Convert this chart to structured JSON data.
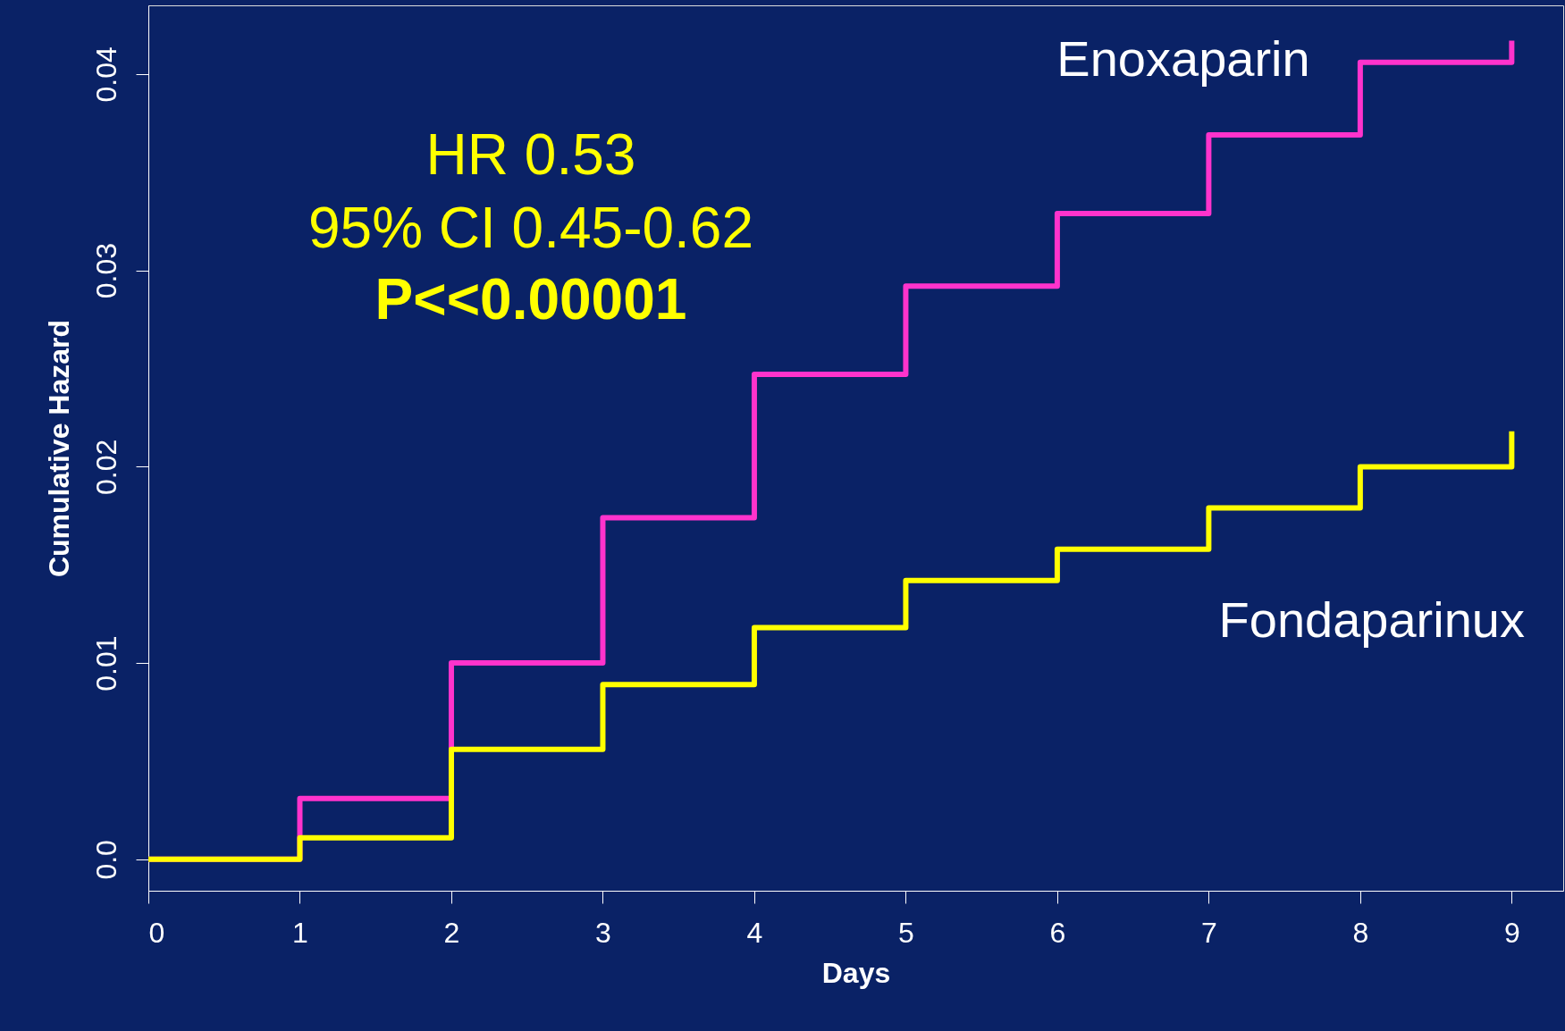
{
  "chart_data": {
    "type": "step",
    "xlabel": "Days",
    "ylabel": "Cumulative Hazard",
    "x": [
      0,
      1,
      2,
      3,
      4,
      5,
      6,
      7,
      8,
      9,
      9
    ],
    "series": [
      {
        "name": "Enoxaparin",
        "color": "#ff33cc",
        "values": [
          0,
          0.0031,
          0.01,
          0.0174,
          0.0247,
          0.0292,
          0.0329,
          0.0369,
          0.0406,
          0.0406,
          0.0417
        ]
      },
      {
        "name": "Fondaparinux",
        "color": "#ffff00",
        "values": [
          0,
          0.0011,
          0.0056,
          0.0089,
          0.0118,
          0.0142,
          0.0158,
          0.0179,
          0.02,
          0.02,
          0.0218
        ]
      }
    ],
    "xlim": [
      0,
      9.34
    ],
    "ylim": [
      -0.0016,
      0.0435
    ],
    "xticks": [
      0,
      1,
      2,
      3,
      4,
      5,
      6,
      7,
      8,
      9
    ],
    "yticks": [
      {
        "value": 0,
        "label": "0.0"
      },
      0.01,
      0.02,
      0.03,
      0.04
    ],
    "grid": false,
    "line_style": "solid",
    "marker": "none",
    "annotations": [
      "HR 0.53",
      "95% CI 0.45-0.62",
      "P<<0.00001"
    ]
  }
}
